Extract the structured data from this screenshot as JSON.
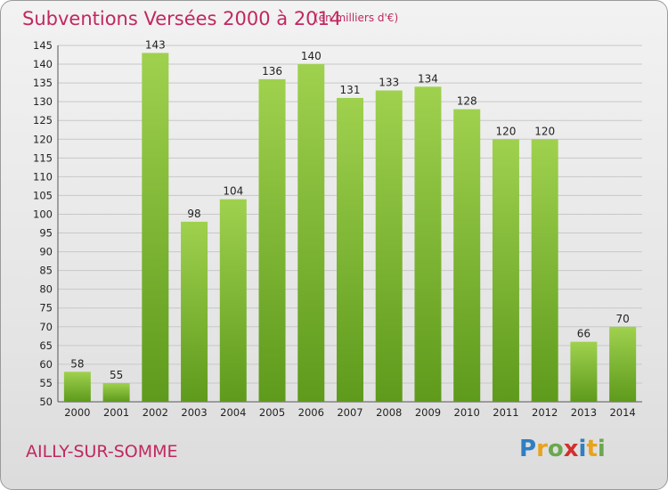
{
  "title": "Subventions Versées 2000 à 2014",
  "subtitle": "(en milliers d'€)",
  "commune": "AILLY-SUR-SOMME",
  "logo": {
    "letters": [
      {
        "ch": "P",
        "color": "#2f7fc1"
      },
      {
        "ch": "r",
        "color": "#e8a31c"
      },
      {
        "ch": "o",
        "color": "#6aa84f"
      },
      {
        "ch": "x",
        "color": "#d0312d"
      },
      {
        "ch": "i",
        "color": "#2f7fc1"
      },
      {
        "ch": "t",
        "color": "#e8a31c"
      },
      {
        "ch": "i",
        "color": "#6aa84f"
      }
    ]
  },
  "colors": {
    "bar_top": "#9fd14e",
    "bar_bottom": "#5e9a1c",
    "accent": "#c0285f"
  },
  "chart_data": {
    "type": "bar",
    "categories": [
      "2000",
      "2001",
      "2002",
      "2003",
      "2004",
      "2005",
      "2006",
      "2007",
      "2008",
      "2009",
      "2010",
      "2011",
      "2012",
      "2013",
      "2014"
    ],
    "values": [
      58,
      55,
      143,
      98,
      104,
      136,
      140,
      131,
      133,
      134,
      128,
      120,
      120,
      66,
      70
    ],
    "ylim": [
      50,
      145
    ],
    "yticks": [
      50,
      55,
      60,
      65,
      70,
      75,
      80,
      85,
      90,
      95,
      100,
      105,
      110,
      115,
      120,
      125,
      130,
      135,
      140,
      145
    ],
    "grid": true,
    "title": "Subventions Versées 2000 à 2014",
    "xlabel": "",
    "ylabel": ""
  }
}
